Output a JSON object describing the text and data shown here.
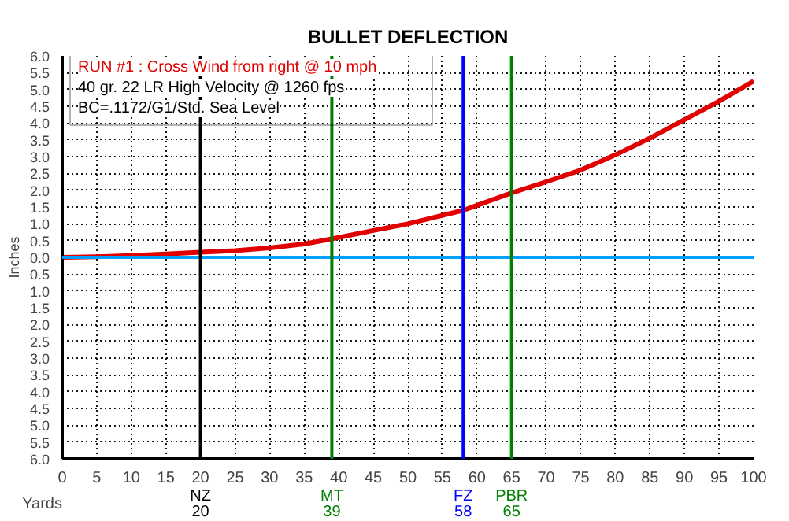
{
  "chart_data": {
    "type": "line",
    "title": "BULLET DEFLECTION",
    "xlabel": "Yards",
    "ylabel": "Inches",
    "x": [
      0,
      5,
      10,
      15,
      20,
      25,
      30,
      35,
      39,
      45,
      50,
      55,
      58,
      60,
      65,
      70,
      75,
      80,
      85,
      90,
      95,
      100
    ],
    "series": [
      {
        "color": "#e00000",
        "values": [
          0,
          0.02,
          0.05,
          0.1,
          0.15,
          0.2,
          0.28,
          0.4,
          0.55,
          0.8,
          1.0,
          1.25,
          1.4,
          1.55,
          1.92,
          2.25,
          2.6,
          3.05,
          3.55,
          4.1,
          4.65,
          5.25
        ]
      }
    ],
    "xlim": [
      0,
      100
    ],
    "xticks": [
      0,
      5,
      10,
      15,
      20,
      25,
      30,
      35,
      40,
      45,
      50,
      55,
      60,
      65,
      70,
      75,
      80,
      85,
      90,
      95,
      100
    ],
    "ylim": [
      -6,
      6
    ],
    "yticks": [
      {
        "value": -6,
        "label": "6.0"
      },
      {
        "value": -5.5,
        "label": "5.5"
      },
      {
        "value": -5,
        "label": "5.0"
      },
      {
        "value": -4.5,
        "label": "4.5"
      },
      {
        "value": -4,
        "label": "4.0"
      },
      {
        "value": -3.5,
        "label": "3.5"
      },
      {
        "value": -3,
        "label": "3.0"
      },
      {
        "value": -2.5,
        "label": "2.5"
      },
      {
        "value": -2,
        "label": "2.0"
      },
      {
        "value": -1.5,
        "label": "1.5"
      },
      {
        "value": -1,
        "label": "1.0"
      },
      {
        "value": -0.5,
        "label": "0.5"
      },
      {
        "value": 0,
        "label": "0.0"
      },
      {
        "value": 0.5,
        "label": "0.5"
      },
      {
        "value": 1,
        "label": "1.0"
      },
      {
        "value": 1.5,
        "label": "1.5"
      },
      {
        "value": 2,
        "label": "2.0"
      },
      {
        "value": 2.5,
        "label": "2.5"
      },
      {
        "value": 3,
        "label": "3.0"
      },
      {
        "value": 3.5,
        "label": "3.5"
      },
      {
        "value": 4,
        "label": "4.0"
      },
      {
        "value": 4.5,
        "label": "4.5"
      },
      {
        "value": 5,
        "label": "5.0"
      },
      {
        "value": 5.5,
        "label": "5.5"
      },
      {
        "value": 6,
        "label": "6.0"
      }
    ],
    "ref_lines": [
      {
        "axis": "y",
        "value": 0,
        "label": null,
        "color": "#00a0ff"
      },
      {
        "axis": "x",
        "value": 20,
        "label": "NZ\n20",
        "color": "#000000"
      },
      {
        "axis": "x",
        "value": 39,
        "label": "MT\n39",
        "color": "#008000"
      },
      {
        "axis": "x",
        "value": 58,
        "label": "FZ\n58",
        "color": "#0000ff"
      },
      {
        "axis": "x",
        "value": 65,
        "label": "PBR\n65",
        "color": "#008000"
      }
    ],
    "annotations": [
      "RUN #1 : Cross Wind from right @ 10 mph",
      "40 gr. 22 LR High Velocity @ 1260 fps",
      "BC=.1172/G1/Std. Sea Level"
    ],
    "grid": true,
    "line_style": "solid",
    "marker": "none"
  }
}
